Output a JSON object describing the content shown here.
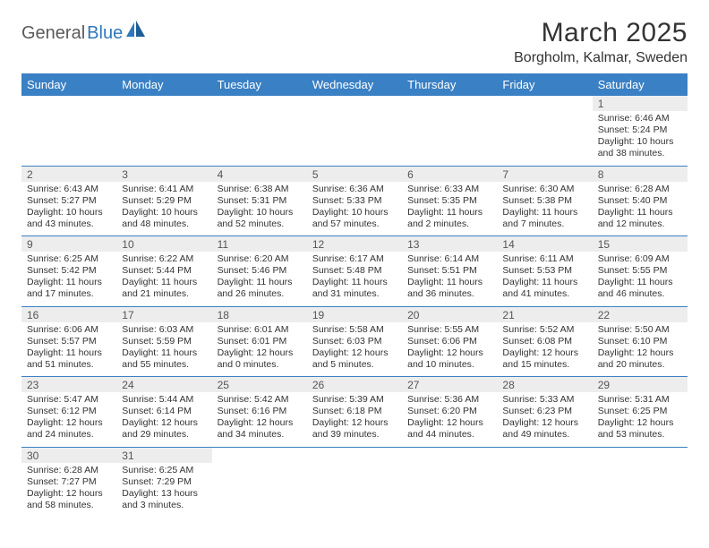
{
  "logo": {
    "part1": "General",
    "part2": "Blue"
  },
  "title": "March 2025",
  "location": "Borgholm, Kalmar, Sweden",
  "colors": {
    "header_bg": "#3a80c4",
    "header_text": "#ffffff",
    "border": "#3a80c4",
    "daynum_bg": "#ededed",
    "logo_gray": "#5a5a5a",
    "logo_blue": "#2f77bb",
    "text": "#333333",
    "background": "#ffffff"
  },
  "columns": [
    "Sunday",
    "Monday",
    "Tuesday",
    "Wednesday",
    "Thursday",
    "Friday",
    "Saturday"
  ],
  "weeks": [
    [
      {
        "empty": true
      },
      {
        "empty": true
      },
      {
        "empty": true
      },
      {
        "empty": true
      },
      {
        "empty": true
      },
      {
        "empty": true
      },
      {
        "day": "1",
        "sunrise": "Sunrise: 6:46 AM",
        "sunset": "Sunset: 5:24 PM",
        "daylight": "Daylight: 10 hours and 38 minutes."
      }
    ],
    [
      {
        "day": "2",
        "sunrise": "Sunrise: 6:43 AM",
        "sunset": "Sunset: 5:27 PM",
        "daylight": "Daylight: 10 hours and 43 minutes."
      },
      {
        "day": "3",
        "sunrise": "Sunrise: 6:41 AM",
        "sunset": "Sunset: 5:29 PM",
        "daylight": "Daylight: 10 hours and 48 minutes."
      },
      {
        "day": "4",
        "sunrise": "Sunrise: 6:38 AM",
        "sunset": "Sunset: 5:31 PM",
        "daylight": "Daylight: 10 hours and 52 minutes."
      },
      {
        "day": "5",
        "sunrise": "Sunrise: 6:36 AM",
        "sunset": "Sunset: 5:33 PM",
        "daylight": "Daylight: 10 hours and 57 minutes."
      },
      {
        "day": "6",
        "sunrise": "Sunrise: 6:33 AM",
        "sunset": "Sunset: 5:35 PM",
        "daylight": "Daylight: 11 hours and 2 minutes."
      },
      {
        "day": "7",
        "sunrise": "Sunrise: 6:30 AM",
        "sunset": "Sunset: 5:38 PM",
        "daylight": "Daylight: 11 hours and 7 minutes."
      },
      {
        "day": "8",
        "sunrise": "Sunrise: 6:28 AM",
        "sunset": "Sunset: 5:40 PM",
        "daylight": "Daylight: 11 hours and 12 minutes."
      }
    ],
    [
      {
        "day": "9",
        "sunrise": "Sunrise: 6:25 AM",
        "sunset": "Sunset: 5:42 PM",
        "daylight": "Daylight: 11 hours and 17 minutes."
      },
      {
        "day": "10",
        "sunrise": "Sunrise: 6:22 AM",
        "sunset": "Sunset: 5:44 PM",
        "daylight": "Daylight: 11 hours and 21 minutes."
      },
      {
        "day": "11",
        "sunrise": "Sunrise: 6:20 AM",
        "sunset": "Sunset: 5:46 PM",
        "daylight": "Daylight: 11 hours and 26 minutes."
      },
      {
        "day": "12",
        "sunrise": "Sunrise: 6:17 AM",
        "sunset": "Sunset: 5:48 PM",
        "daylight": "Daylight: 11 hours and 31 minutes."
      },
      {
        "day": "13",
        "sunrise": "Sunrise: 6:14 AM",
        "sunset": "Sunset: 5:51 PM",
        "daylight": "Daylight: 11 hours and 36 minutes."
      },
      {
        "day": "14",
        "sunrise": "Sunrise: 6:11 AM",
        "sunset": "Sunset: 5:53 PM",
        "daylight": "Daylight: 11 hours and 41 minutes."
      },
      {
        "day": "15",
        "sunrise": "Sunrise: 6:09 AM",
        "sunset": "Sunset: 5:55 PM",
        "daylight": "Daylight: 11 hours and 46 minutes."
      }
    ],
    [
      {
        "day": "16",
        "sunrise": "Sunrise: 6:06 AM",
        "sunset": "Sunset: 5:57 PM",
        "daylight": "Daylight: 11 hours and 51 minutes."
      },
      {
        "day": "17",
        "sunrise": "Sunrise: 6:03 AM",
        "sunset": "Sunset: 5:59 PM",
        "daylight": "Daylight: 11 hours and 55 minutes."
      },
      {
        "day": "18",
        "sunrise": "Sunrise: 6:01 AM",
        "sunset": "Sunset: 6:01 PM",
        "daylight": "Daylight: 12 hours and 0 minutes."
      },
      {
        "day": "19",
        "sunrise": "Sunrise: 5:58 AM",
        "sunset": "Sunset: 6:03 PM",
        "daylight": "Daylight: 12 hours and 5 minutes."
      },
      {
        "day": "20",
        "sunrise": "Sunrise: 5:55 AM",
        "sunset": "Sunset: 6:06 PM",
        "daylight": "Daylight: 12 hours and 10 minutes."
      },
      {
        "day": "21",
        "sunrise": "Sunrise: 5:52 AM",
        "sunset": "Sunset: 6:08 PM",
        "daylight": "Daylight: 12 hours and 15 minutes."
      },
      {
        "day": "22",
        "sunrise": "Sunrise: 5:50 AM",
        "sunset": "Sunset: 6:10 PM",
        "daylight": "Daylight: 12 hours and 20 minutes."
      }
    ],
    [
      {
        "day": "23",
        "sunrise": "Sunrise: 5:47 AM",
        "sunset": "Sunset: 6:12 PM",
        "daylight": "Daylight: 12 hours and 24 minutes."
      },
      {
        "day": "24",
        "sunrise": "Sunrise: 5:44 AM",
        "sunset": "Sunset: 6:14 PM",
        "daylight": "Daylight: 12 hours and 29 minutes."
      },
      {
        "day": "25",
        "sunrise": "Sunrise: 5:42 AM",
        "sunset": "Sunset: 6:16 PM",
        "daylight": "Daylight: 12 hours and 34 minutes."
      },
      {
        "day": "26",
        "sunrise": "Sunrise: 5:39 AM",
        "sunset": "Sunset: 6:18 PM",
        "daylight": "Daylight: 12 hours and 39 minutes."
      },
      {
        "day": "27",
        "sunrise": "Sunrise: 5:36 AM",
        "sunset": "Sunset: 6:20 PM",
        "daylight": "Daylight: 12 hours and 44 minutes."
      },
      {
        "day": "28",
        "sunrise": "Sunrise: 5:33 AM",
        "sunset": "Sunset: 6:23 PM",
        "daylight": "Daylight: 12 hours and 49 minutes."
      },
      {
        "day": "29",
        "sunrise": "Sunrise: 5:31 AM",
        "sunset": "Sunset: 6:25 PM",
        "daylight": "Daylight: 12 hours and 53 minutes."
      }
    ],
    [
      {
        "day": "30",
        "sunrise": "Sunrise: 6:28 AM",
        "sunset": "Sunset: 7:27 PM",
        "daylight": "Daylight: 12 hours and 58 minutes."
      },
      {
        "day": "31",
        "sunrise": "Sunrise: 6:25 AM",
        "sunset": "Sunset: 7:29 PM",
        "daylight": "Daylight: 13 hours and 3 minutes."
      },
      {
        "empty": true
      },
      {
        "empty": true
      },
      {
        "empty": true
      },
      {
        "empty": true
      },
      {
        "empty": true
      }
    ]
  ]
}
